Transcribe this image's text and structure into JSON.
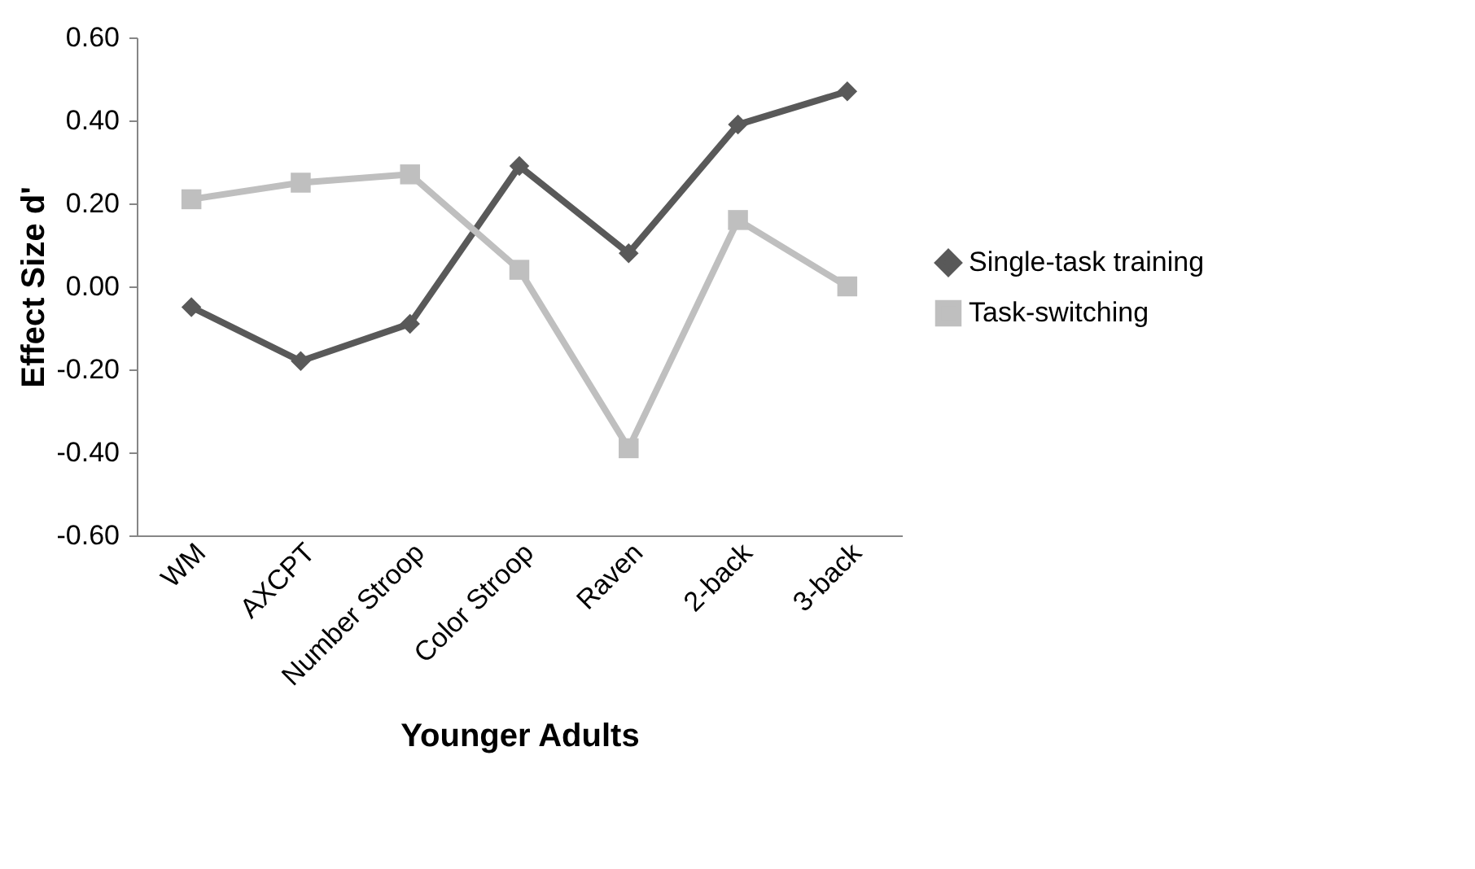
{
  "chart_data": {
    "type": "line",
    "xlabel": "Younger Adults",
    "ylabel": "Effect Size d'",
    "categories": [
      "WM",
      "AXCPT",
      "Number Stroop",
      "Color Stroop",
      "Raven",
      "2-back",
      "3-back"
    ],
    "series": [
      {
        "name": "Single-task training",
        "color": "#595959",
        "marker": "diamond",
        "values": [
          -0.05,
          -0.18,
          -0.09,
          0.29,
          0.08,
          0.39,
          0.47
        ]
      },
      {
        "name": "Task-switching",
        "color": "#bfbfbf",
        "marker": "square",
        "values": [
          0.21,
          0.25,
          0.27,
          0.04,
          -0.39,
          0.16,
          0.0
        ]
      }
    ],
    "ylim": [
      -0.6,
      0.6
    ],
    "yticks": [
      {
        "value": -0.6,
        "label": "-0.60"
      },
      {
        "value": -0.4,
        "label": "-0.40"
      },
      {
        "value": -0.2,
        "label": "-0.20"
      },
      {
        "value": 0,
        "label": "0.00"
      },
      {
        "value": 0.2,
        "label": "0.20"
      },
      {
        "value": 0.4,
        "label": "0.40"
      },
      {
        "value": 0.6,
        "label": "0.60"
      }
    ],
    "grid": false,
    "legend": "right",
    "line_style": "solid"
  }
}
